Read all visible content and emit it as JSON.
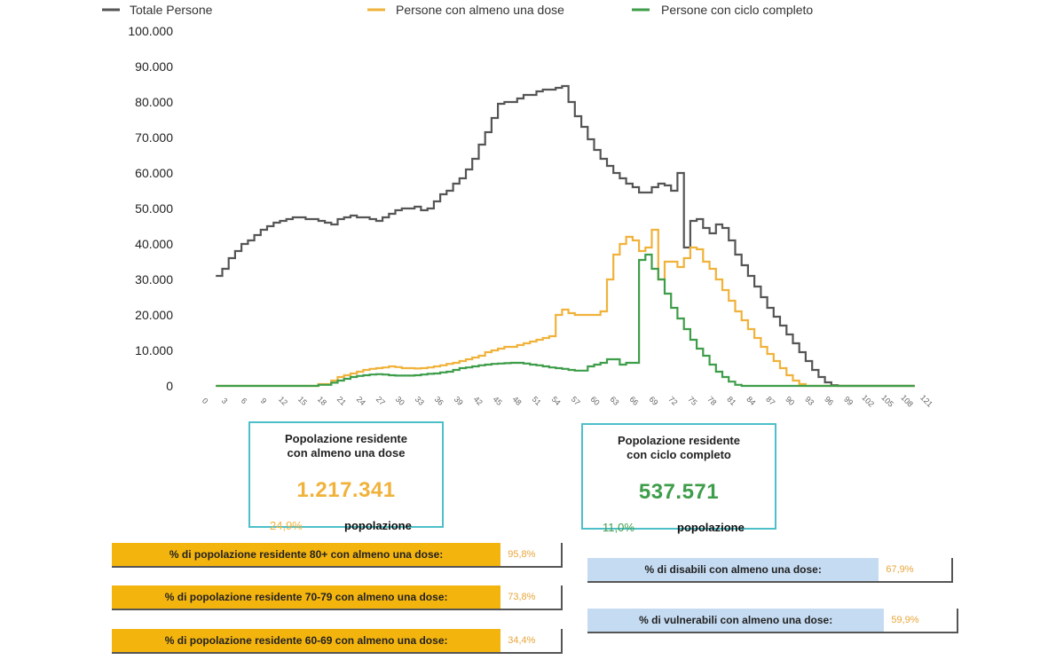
{
  "chart_data": {
    "type": "line",
    "xlabel": "",
    "ylabel": "",
    "ylim": [
      0,
      100000
    ],
    "y_ticks": [
      "0",
      "10.000",
      "20.000",
      "30.000",
      "40.000",
      "50.000",
      "60.000",
      "70.000",
      "80.000",
      "90.000",
      "100.000"
    ],
    "x_ticks": [
      "0",
      "3",
      "6",
      "9",
      "12",
      "15",
      "18",
      "21",
      "24",
      "27",
      "30",
      "33",
      "36",
      "39",
      "42",
      "45",
      "48",
      "51",
      "54",
      "57",
      "60",
      "63",
      "66",
      "69",
      "72",
      "75",
      "78",
      "81",
      "84",
      "87",
      "90",
      "93",
      "96",
      "99",
      "102",
      "105",
      "108",
      "121"
    ],
    "x_range": [
      0,
      111
    ],
    "legend_position": "top",
    "series": [
      {
        "name": "Totale Persone",
        "color": "#555555",
        "points": [
          [
            1,
            31000
          ],
          [
            2,
            33000
          ],
          [
            3,
            36000
          ],
          [
            4,
            38000
          ],
          [
            5,
            40000
          ],
          [
            6,
            41000
          ],
          [
            7,
            42500
          ],
          [
            8,
            44000
          ],
          [
            9,
            45000
          ],
          [
            10,
            46000
          ],
          [
            11,
            46500
          ],
          [
            12,
            47000
          ],
          [
            13,
            47500
          ],
          [
            14,
            47500
          ],
          [
            15,
            47000
          ],
          [
            16,
            47000
          ],
          [
            17,
            46500
          ],
          [
            18,
            46000
          ],
          [
            19,
            45500
          ],
          [
            20,
            47000
          ],
          [
            21,
            47500
          ],
          [
            22,
            48000
          ],
          [
            23,
            47500
          ],
          [
            24,
            47500
          ],
          [
            25,
            47000
          ],
          [
            26,
            46500
          ],
          [
            27,
            47500
          ],
          [
            28,
            48500
          ],
          [
            29,
            49500
          ],
          [
            30,
            50000
          ],
          [
            31,
            50000
          ],
          [
            32,
            50500
          ],
          [
            33,
            49500
          ],
          [
            34,
            50000
          ],
          [
            35,
            52000
          ],
          [
            36,
            54000
          ],
          [
            37,
            55000
          ],
          [
            38,
            57000
          ],
          [
            39,
            58500
          ],
          [
            40,
            61000
          ],
          [
            41,
            64000
          ],
          [
            42,
            68000
          ],
          [
            43,
            71500
          ],
          [
            44,
            75500
          ],
          [
            45,
            79500
          ],
          [
            46,
            80000
          ],
          [
            47,
            80000
          ],
          [
            48,
            81000
          ],
          [
            49,
            82000
          ],
          [
            50,
            82000
          ],
          [
            51,
            83000
          ],
          [
            52,
            83500
          ],
          [
            53,
            83500
          ],
          [
            54,
            84000
          ],
          [
            55,
            84500
          ],
          [
            56,
            80000
          ],
          [
            57,
            76000
          ],
          [
            58,
            73000
          ],
          [
            59,
            69500
          ],
          [
            60,
            66500
          ],
          [
            61,
            64000
          ],
          [
            62,
            62000
          ],
          [
            63,
            60000
          ],
          [
            64,
            58500
          ],
          [
            65,
            57000
          ],
          [
            66,
            56000
          ],
          [
            67,
            54500
          ],
          [
            68,
            54500
          ],
          [
            69,
            56000
          ],
          [
            70,
            57000
          ],
          [
            71,
            56500
          ],
          [
            72,
            55000
          ],
          [
            73,
            60000
          ],
          [
            74,
            39000
          ],
          [
            75,
            46500
          ],
          [
            76,
            47000
          ],
          [
            77,
            44500
          ],
          [
            78,
            43000
          ],
          [
            79,
            45500
          ],
          [
            80,
            44500
          ],
          [
            81,
            41000
          ],
          [
            82,
            37000
          ],
          [
            83,
            34000
          ],
          [
            84,
            31000
          ],
          [
            85,
            28000
          ],
          [
            86,
            25000
          ],
          [
            87,
            22000
          ],
          [
            88,
            19500
          ],
          [
            89,
            17000
          ],
          [
            90,
            14500
          ],
          [
            91,
            12000
          ],
          [
            92,
            9500
          ],
          [
            93,
            7000
          ],
          [
            94,
            4500
          ],
          [
            95,
            2500
          ],
          [
            96,
            1000
          ],
          [
            97,
            200
          ],
          [
            98,
            0
          ],
          [
            108,
            0
          ],
          [
            110,
            0
          ]
        ]
      },
      {
        "name": "Persone con almeno una dose",
        "color": "#f0b23a",
        "points": [
          [
            1,
            0
          ],
          [
            15,
            0
          ],
          [
            17,
            500
          ],
          [
            19,
            1500
          ],
          [
            20,
            2500
          ],
          [
            21,
            3000
          ],
          [
            22,
            3500
          ],
          [
            23,
            4000
          ],
          [
            24,
            4500
          ],
          [
            25,
            4800
          ],
          [
            26,
            5000
          ],
          [
            27,
            5200
          ],
          [
            28,
            5500
          ],
          [
            29,
            5300
          ],
          [
            30,
            5000
          ],
          [
            31,
            5000
          ],
          [
            32,
            4900
          ],
          [
            33,
            5000
          ],
          [
            34,
            5200
          ],
          [
            35,
            5500
          ],
          [
            36,
            5800
          ],
          [
            37,
            6200
          ],
          [
            38,
            6500
          ],
          [
            39,
            7000
          ],
          [
            40,
            7500
          ],
          [
            41,
            8000
          ],
          [
            42,
            8500
          ],
          [
            43,
            9500
          ],
          [
            44,
            10000
          ],
          [
            45,
            10500
          ],
          [
            46,
            11000
          ],
          [
            47,
            11000
          ],
          [
            48,
            11500
          ],
          [
            49,
            12000
          ],
          [
            50,
            12500
          ],
          [
            51,
            13000
          ],
          [
            52,
            13500
          ],
          [
            53,
            14000
          ],
          [
            54,
            20000
          ],
          [
            55,
            21500
          ],
          [
            56,
            20500
          ],
          [
            57,
            20000
          ],
          [
            58,
            20000
          ],
          [
            59,
            20000
          ],
          [
            60,
            20000
          ],
          [
            61,
            21000
          ],
          [
            62,
            30000
          ],
          [
            63,
            37000
          ],
          [
            64,
            40000
          ],
          [
            65,
            42000
          ],
          [
            66,
            41000
          ],
          [
            67,
            38000
          ],
          [
            68,
            39000
          ],
          [
            69,
            44000
          ],
          [
            70,
            30000
          ],
          [
            71,
            35000
          ],
          [
            72,
            35000
          ],
          [
            73,
            33500
          ],
          [
            74,
            36000
          ],
          [
            75,
            39000
          ],
          [
            76,
            38500
          ],
          [
            77,
            35000
          ],
          [
            78,
            33000
          ],
          [
            79,
            30000
          ],
          [
            80,
            27000
          ],
          [
            81,
            24000
          ],
          [
            82,
            21000
          ],
          [
            83,
            18500
          ],
          [
            84,
            16000
          ],
          [
            85,
            13500
          ],
          [
            86,
            11000
          ],
          [
            87,
            9000
          ],
          [
            88,
            7000
          ],
          [
            89,
            5000
          ],
          [
            90,
            3000
          ],
          [
            91,
            1500
          ],
          [
            92,
            500
          ],
          [
            93,
            0
          ],
          [
            108,
            0
          ],
          [
            110,
            0
          ]
        ]
      },
      {
        "name": "Persone con ciclo completo",
        "color": "#3e9d4a",
        "points": [
          [
            1,
            0
          ],
          [
            15,
            0
          ],
          [
            17,
            300
          ],
          [
            19,
            900
          ],
          [
            20,
            1500
          ],
          [
            21,
            2000
          ],
          [
            22,
            2500
          ],
          [
            23,
            2800
          ],
          [
            24,
            3000
          ],
          [
            25,
            3200
          ],
          [
            26,
            3300
          ],
          [
            27,
            3200
          ],
          [
            28,
            3000
          ],
          [
            29,
            2900
          ],
          [
            30,
            2900
          ],
          [
            31,
            2900
          ],
          [
            32,
            3000
          ],
          [
            33,
            3200
          ],
          [
            34,
            3400
          ],
          [
            35,
            3500
          ],
          [
            36,
            3800
          ],
          [
            37,
            4000
          ],
          [
            38,
            4500
          ],
          [
            39,
            5000
          ],
          [
            40,
            5200
          ],
          [
            41,
            5500
          ],
          [
            42,
            5800
          ],
          [
            43,
            6000
          ],
          [
            44,
            6200
          ],
          [
            45,
            6300
          ],
          [
            46,
            6400
          ],
          [
            47,
            6500
          ],
          [
            48,
            6500
          ],
          [
            49,
            6300
          ],
          [
            50,
            6000
          ],
          [
            51,
            5800
          ],
          [
            52,
            5500
          ],
          [
            53,
            5200
          ],
          [
            54,
            5000
          ],
          [
            55,
            4800
          ],
          [
            56,
            4500
          ],
          [
            57,
            4300
          ],
          [
            58,
            4300
          ],
          [
            59,
            5500
          ],
          [
            60,
            6000
          ],
          [
            61,
            6500
          ],
          [
            62,
            7500
          ],
          [
            63,
            7500
          ],
          [
            64,
            6000
          ],
          [
            65,
            6500
          ],
          [
            66,
            6500
          ],
          [
            67,
            35500
          ],
          [
            68,
            37000
          ],
          [
            69,
            33000
          ],
          [
            70,
            30000
          ],
          [
            71,
            26000
          ],
          [
            72,
            22000
          ],
          [
            73,
            19000
          ],
          [
            74,
            16000
          ],
          [
            75,
            13000
          ],
          [
            76,
            10500
          ],
          [
            77,
            8500
          ],
          [
            78,
            6000
          ],
          [
            79,
            4000
          ],
          [
            80,
            2500
          ],
          [
            81,
            1200
          ],
          [
            82,
            300
          ],
          [
            83,
            0
          ],
          [
            108,
            0
          ],
          [
            110,
            0
          ]
        ]
      }
    ]
  },
  "legend": [
    {
      "label": "Totale Persone",
      "color": "#555555"
    },
    {
      "label": "Persone con almeno una dose",
      "color": "#f0b23a"
    },
    {
      "label": "Persone con ciclo completo",
      "color": "#3e9d4a"
    }
  ],
  "kpi": [
    {
      "title_line1": "Popolazione residente",
      "title_line2": "con almeno una dose",
      "value": "1.217.341",
      "value_color": "#f0b23a",
      "pct": "24,9%",
      "pct_color": "#f0b23a",
      "pop_label": "popolazione"
    },
    {
      "title_line1": "Popolazione residente",
      "title_line2": "con ciclo completo",
      "value": "537.571",
      "value_color": "#3e9d4a",
      "pct": "11,0%",
      "pct_color": "#3e9d4a",
      "pop_label": "popolazione"
    }
  ],
  "age_bars": [
    {
      "label": "% di popolazione residente 80+ con almeno una dose:",
      "value": "95,8%"
    },
    {
      "label": "% di popolazione residente 70-79 con almeno una dose:",
      "value": "73,8%"
    },
    {
      "label": "% di popolazione residente 60-69 con almeno una dose:",
      "value": "34,4%"
    }
  ],
  "group_bars": [
    {
      "label": "% di disabili con almeno una dose:",
      "value": "67,9%"
    },
    {
      "label": "% di vulnerabili con almeno una dose:",
      "value": "59,9%"
    }
  ]
}
